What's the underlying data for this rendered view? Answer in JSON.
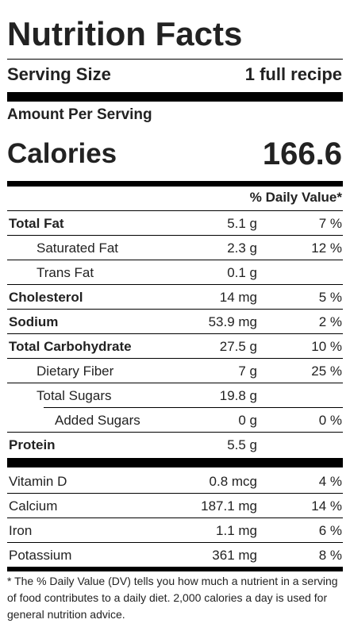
{
  "title": "Nutrition Facts",
  "serving": {
    "label": "Serving Size",
    "value": "1 full recipe"
  },
  "amount_per_serving": "Amount Per Serving",
  "calories": {
    "label": "Calories",
    "value": "166.6"
  },
  "daily_value_header": "% Daily Value*",
  "nutrients": [
    {
      "name": "Total Fat",
      "amount": "5.1 g",
      "dv": "7 %"
    },
    {
      "name": "Saturated Fat",
      "amount": "2.3 g",
      "dv": "12 %"
    },
    {
      "name": "Trans Fat",
      "amount": "0.1 g",
      "dv": ""
    },
    {
      "name": "Cholesterol",
      "amount": "14 mg",
      "dv": "5 %"
    },
    {
      "name": "Sodium",
      "amount": "53.9 mg",
      "dv": "2 %"
    },
    {
      "name": "Total Carbohydrate",
      "amount": "27.5 g",
      "dv": "10 %"
    },
    {
      "name": "Dietary Fiber",
      "amount": "7 g",
      "dv": "25 %"
    },
    {
      "name": "Total Sugars",
      "amount": "19.8 g",
      "dv": ""
    },
    {
      "name": "Added Sugars",
      "amount": "0 g",
      "dv": "0 %"
    },
    {
      "name": "Protein",
      "amount": "5.5 g",
      "dv": ""
    }
  ],
  "vitamins": [
    {
      "name": "Vitamin D",
      "amount": "0.8 mcg",
      "dv": "4 %"
    },
    {
      "name": "Calcium",
      "amount": "187.1 mg",
      "dv": "14 %"
    },
    {
      "name": "Iron",
      "amount": "1.1 mg",
      "dv": "6 %"
    },
    {
      "name": "Potassium",
      "amount": "361 mg",
      "dv": "8 %"
    }
  ],
  "footnote": "* The % Daily Value (DV) tells you how much a nutrient in a serving of food contributes to a daily diet. 2,000 calories a day is used for general nutrition advice."
}
